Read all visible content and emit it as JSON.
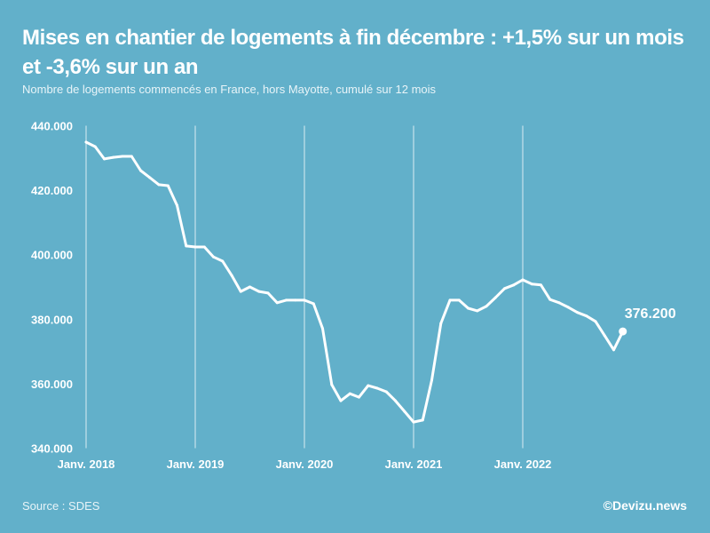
{
  "chart_data": {
    "type": "line",
    "title": "Mises en chantier de logements à fin décembre : +1,5% sur un mois et -3,6% sur un an",
    "subtitle": "Nombre de logements commencés en France, hors Mayotte, cumulé sur 12 mois",
    "xlabel": "",
    "ylabel": "",
    "ylim": [
      340000,
      440000
    ],
    "yticks": [
      440000,
      420000,
      400000,
      380000,
      360000,
      340000
    ],
    "ytick_labels": [
      "440.000",
      "420.000",
      "400.000",
      "380.000",
      "360.000",
      "340.000"
    ],
    "xtick_labels": [
      "Janv. 2018",
      "Janv. 2019",
      "Janv. 2020",
      "Janv. 2021",
      "Janv. 2022"
    ],
    "xtick_month_index": [
      0,
      12,
      24,
      36,
      48
    ],
    "grid": "vertical",
    "x_start": "2018-01",
    "series": [
      {
        "name": "Logements commencés (cumul 12 mois)",
        "values": [
          434900,
          433500,
          429700,
          430200,
          430500,
          430500,
          426100,
          423900,
          421700,
          421400,
          415300,
          402700,
          402400,
          402400,
          399300,
          398000,
          393600,
          388600,
          390000,
          388600,
          388100,
          385100,
          385900,
          385900,
          385900,
          384800,
          377100,
          359700,
          354700,
          356900,
          355800,
          359400,
          358600,
          357500,
          354700,
          351400,
          348100,
          348700,
          361100,
          378700,
          385900,
          385900,
          383400,
          382600,
          384000,
          386700,
          389500,
          390600,
          392200,
          390900,
          390600,
          386100,
          385100,
          383700,
          382100,
          381000,
          379300,
          374900,
          370500,
          376200
        ]
      }
    ],
    "annotations": [
      {
        "label": "376.200",
        "month_index": 59,
        "value": 376200
      }
    ],
    "colors": {
      "background": "#62b0ca",
      "line": "#ffffff",
      "grid": "#d9edf3"
    }
  },
  "footer": {
    "source": "Source : SDES",
    "credit": "©Devizu.news"
  }
}
